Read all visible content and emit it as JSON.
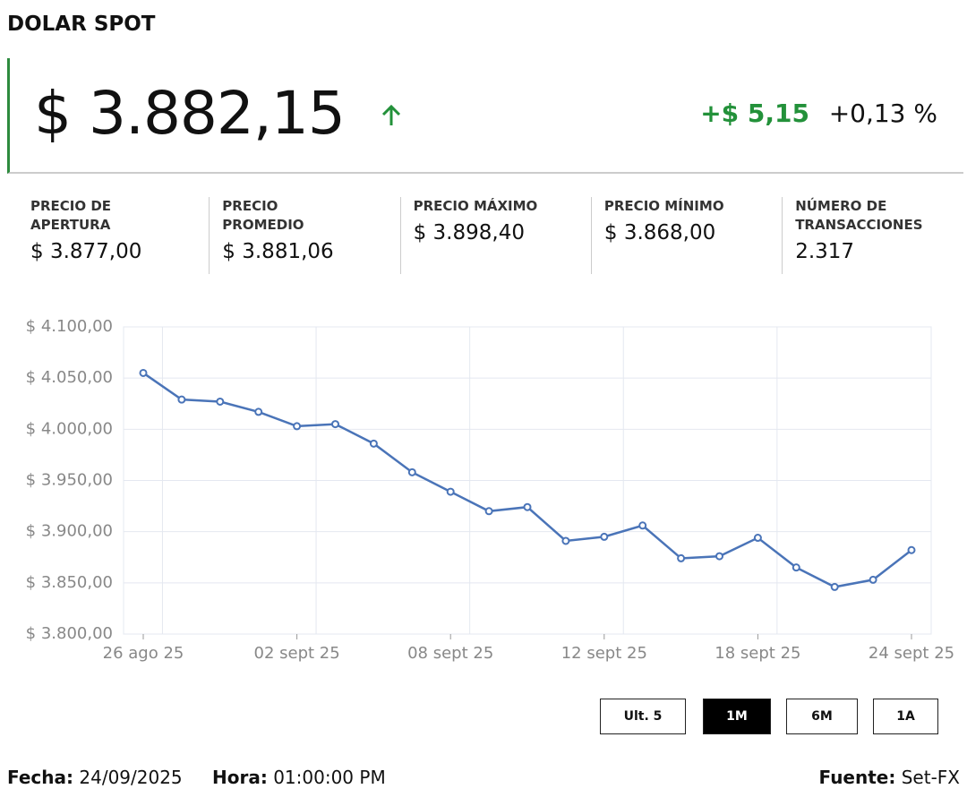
{
  "header": {
    "title": "DOLAR SPOT",
    "price": "$ 3.882,15",
    "change": "+$ 5,15",
    "change_pct": "+0,13 %"
  },
  "stats": [
    {
      "label": "PRECIO DE\nAPERTURA",
      "value": "$ 3.877,00"
    },
    {
      "label": "PRECIO\nPROMEDIO",
      "value": "$ 3.881,06"
    },
    {
      "label": "PRECIO MÁXIMO",
      "value": "$ 3.898,40"
    },
    {
      "label": "PRECIO MÍNIMO",
      "value": "$ 3.868,00"
    },
    {
      "label": "NÚMERO DE\nTRANSACCIONES",
      "value": "2.317"
    }
  ],
  "chart_data": {
    "type": "line",
    "categories": [
      "26 ago 25",
      null,
      null,
      null,
      "02 sept 25",
      null,
      null,
      null,
      "08 sept 25",
      null,
      null,
      null,
      "12 sept 25",
      null,
      null,
      null,
      "18 sept 25",
      null,
      null,
      null,
      "24 sept 25"
    ],
    "series": [
      {
        "color": "#4a74b8",
        "values": [
          4055,
          4029,
          4027,
          4017,
          4003,
          4005,
          3986,
          3958,
          3939,
          3920,
          3924,
          3891,
          3895,
          3906,
          3874,
          3876,
          3894,
          3865,
          3846,
          3853,
          3882
        ]
      }
    ],
    "ylim": [
      3800,
      4100
    ],
    "yticks": [
      {
        "value": 3800,
        "label": "$ 3.800,00"
      },
      {
        "value": 3850,
        "label": "$ 3.850,00"
      },
      {
        "value": 3900,
        "label": "$ 3.900,00"
      },
      {
        "value": 3950,
        "label": "$ 3.950,00"
      },
      {
        "value": 4000,
        "label": "$ 4.000,00"
      },
      {
        "value": 4050,
        "label": "$ 4.050,00"
      },
      {
        "value": 4100,
        "label": "$ 4.100,00"
      }
    ],
    "grid": true
  },
  "buttons": [
    {
      "label": "Ult. 5",
      "active": false
    },
    {
      "label": "1M",
      "active": true
    },
    {
      "label": "6M",
      "active": false
    },
    {
      "label": "1A",
      "active": false
    }
  ],
  "footer": {
    "date_label": "Fecha:",
    "date": "24/09/2025",
    "time_label": "Hora:",
    "time": "01:00:00 PM",
    "source_label": "Fuente:",
    "source": "Set-FX"
  }
}
